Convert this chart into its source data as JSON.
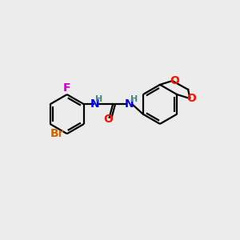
{
  "bg_color": "#ececec",
  "bond_color": "#000000",
  "atom_colors": {
    "F": "#CC00CC",
    "Br": "#CC6600",
    "N": "#0000EE",
    "O": "#FF1100",
    "H": "#448888",
    "C": "#000000"
  },
  "lw": 1.6,
  "font_size_atom": 10,
  "font_size_h": 8
}
